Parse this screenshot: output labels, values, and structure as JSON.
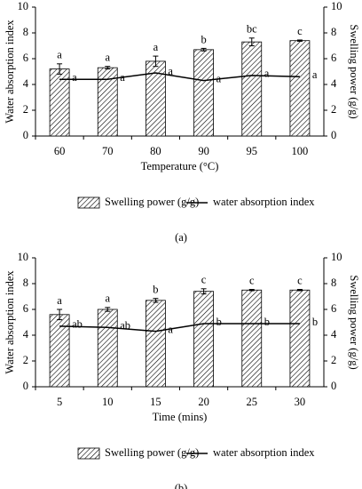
{
  "chart_data": [
    {
      "type": "bar",
      "x_label": "Temperature (°C)",
      "y_label": "Water absorption index",
      "y2_label": "Swelling power (g/g)",
      "caption": "(a)",
      "categories": [
        "60",
        "70",
        "80",
        "90",
        "95",
        "100"
      ],
      "series": [
        {
          "name": "Swelling power (g/g)",
          "type": "bar",
          "axis": "y2",
          "color": "#000000",
          "values": [
            5.2,
            5.3,
            5.8,
            6.7,
            7.3,
            7.4
          ],
          "errors": [
            0.4,
            0.1,
            0.4,
            0.1,
            0.3,
            0.05
          ],
          "letters": [
            "a",
            "a",
            "a",
            "b",
            "bc",
            "c"
          ]
        },
        {
          "name": "water absorption index",
          "type": "line",
          "axis": "y",
          "color": "#000000",
          "values": [
            4.4,
            4.4,
            4.9,
            4.3,
            4.7,
            4.6
          ],
          "letters": [
            "a",
            "a",
            "a",
            "a",
            "a",
            "a"
          ]
        }
      ],
      "ylim": [
        0,
        10
      ],
      "yticks": [
        0,
        2,
        4,
        6,
        8,
        10
      ],
      "y2lim": [
        0,
        10
      ],
      "y2ticks": [
        0,
        2,
        4,
        6,
        8,
        10
      ],
      "grid": false
    },
    {
      "type": "bar",
      "x_label": "Time (mins)",
      "y_label": "Water absorption index",
      "y2_label": "Swelling power (g/g)",
      "caption": "(b)",
      "categories": [
        "5",
        "10",
        "15",
        "20",
        "25",
        "30"
      ],
      "series": [
        {
          "name": "Swelling power (g/g)",
          "type": "bar",
          "axis": "y2",
          "color": "#000000",
          "values": [
            5.6,
            6.0,
            6.7,
            7.4,
            7.5,
            7.5
          ],
          "errors": [
            0.4,
            0.15,
            0.15,
            0.2,
            0.05,
            0.05
          ],
          "letters": [
            "a",
            "a",
            "b",
            "c",
            "c",
            "c"
          ]
        },
        {
          "name": "water absorption index",
          "type": "line",
          "axis": "y",
          "color": "#000000",
          "values": [
            4.7,
            4.6,
            4.3,
            4.9,
            4.9,
            4.9
          ],
          "letters": [
            "ab",
            "ab",
            "a",
            "b",
            "b",
            "b"
          ]
        }
      ],
      "ylim": [
        0,
        10
      ],
      "yticks": [
        0,
        2,
        4,
        6,
        8,
        10
      ],
      "y2lim": [
        0,
        10
      ],
      "y2ticks": [
        0,
        2,
        4,
        6,
        8,
        10
      ],
      "grid": false
    }
  ]
}
